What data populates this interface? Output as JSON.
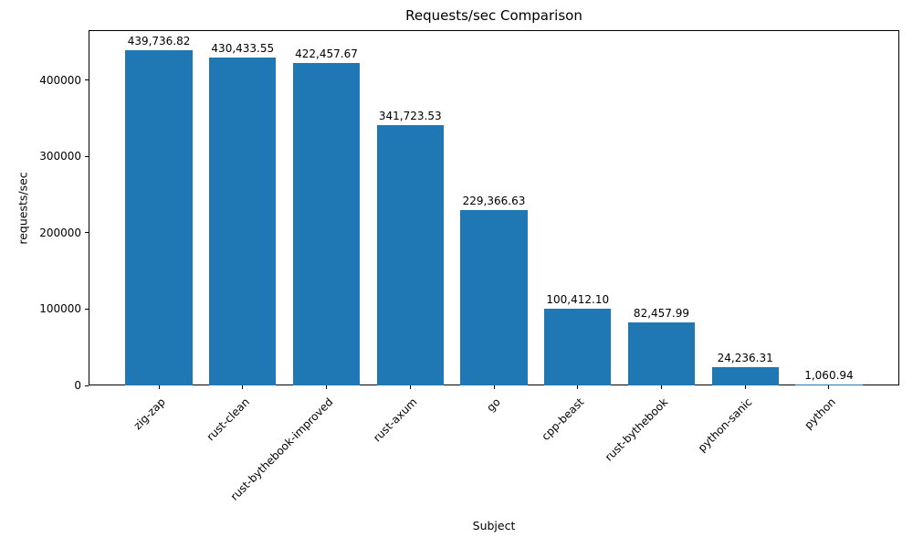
{
  "chart_data": {
    "type": "bar",
    "title": "Requests/sec Comparison",
    "xlabel": "Subject",
    "ylabel": "requests/sec",
    "categories": [
      "zig-zap",
      "rust-clean",
      "rust-bythebook-improved",
      "rust-axum",
      "go",
      "cpp-beast",
      "rust-bythebook",
      "python-sanic",
      "python"
    ],
    "values": [
      439736.82,
      430433.55,
      422457.67,
      341723.53,
      229366.63,
      100412.1,
      82457.99,
      24236.31,
      1060.94
    ],
    "value_labels": [
      "439,736.82",
      "430,433.55",
      "422,457.67",
      "341,723.53",
      "229,366.63",
      "100,412.10",
      "82,457.99",
      "24,236.31",
      "1,060.94"
    ],
    "yticks": [
      0,
      100000,
      200000,
      300000,
      400000
    ],
    "ytick_labels": [
      "0",
      "100000",
      "200000",
      "300000",
      "400000"
    ],
    "ylim": [
      0,
      465868
    ],
    "bar_color": "#1f77b4",
    "grid": false,
    "legend": null
  }
}
